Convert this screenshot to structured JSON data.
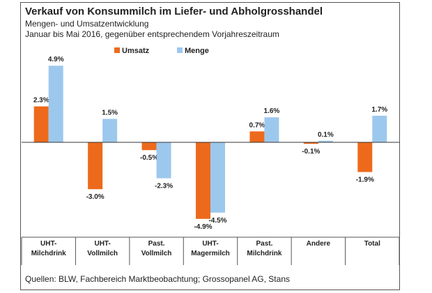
{
  "header": {
    "title": "Verkauf von Konsummilch im Liefer- und Abholgrosshandel",
    "subtitle1": "Mengen- und Umsatzentwicklung",
    "subtitle2": "Januar bis Mai 2016, gegenüber entsprechendem Vorjahreszeitraum"
  },
  "footer": {
    "source": "Quellen: BLW, Fachbereich Marktbeobachtung; Grossopanel AG, Stans"
  },
  "chart_data": {
    "type": "bar",
    "categories": [
      [
        "UHT-",
        "Milchdrink"
      ],
      [
        "UHT-",
        "Vollmilch"
      ],
      [
        "Past.",
        "Vollmilch"
      ],
      [
        "UHT-",
        "Magermilch"
      ],
      [
        "Past.",
        "Milchdrink"
      ],
      [
        "Andere"
      ],
      [
        "Total"
      ]
    ],
    "series": [
      {
        "name": "Umsatz",
        "color": "#ED6A1C",
        "values": [
          2.3,
          -3.0,
          -0.5,
          -4.9,
          0.7,
          -0.1,
          -1.9
        ],
        "labels": [
          "2.3%",
          "-3.0%",
          "-0.5%",
          "-4.9%",
          "0.7%",
          "-0.1%",
          "-1.9%"
        ]
      },
      {
        "name": "Menge",
        "color": "#9DC8EE",
        "values": [
          4.9,
          1.5,
          -2.3,
          -4.5,
          1.6,
          0.1,
          1.7
        ],
        "labels": [
          "4.9%",
          "1.5%",
          "-2.3%",
          "-4.5%",
          "1.6%",
          "0.1%",
          "1.7%"
        ]
      }
    ],
    "ylim": [
      -5.0,
      5.2
    ],
    "legend_position": "top",
    "grid": false
  }
}
